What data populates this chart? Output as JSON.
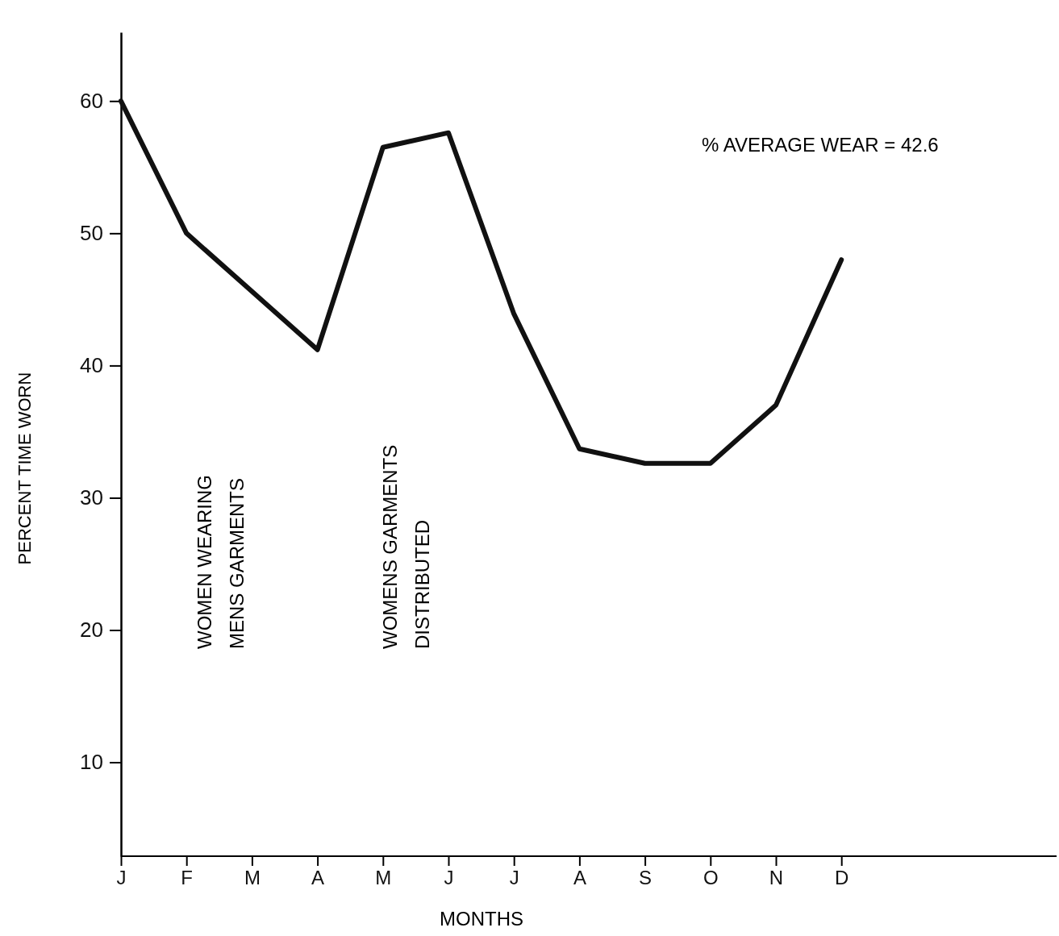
{
  "chart_data": {
    "type": "line",
    "xlabel": "MONTHS",
    "ylabel": "PERCENT TIME WORN",
    "categories": [
      "J",
      "F",
      "M",
      "A",
      "M",
      "J",
      "J",
      "A",
      "S",
      "O",
      "N",
      "D"
    ],
    "series": [
      {
        "color": "#111111",
        "values": [
          60,
          50,
          45.6,
          41.2,
          56.5,
          57.6,
          43.9,
          33.7,
          32.6,
          32.6,
          37,
          48
        ]
      }
    ],
    "ylim": [
      2.9,
      65.2
    ],
    "yticks": [
      10,
      20,
      30,
      40,
      50,
      60
    ],
    "grid": false,
    "marker": "none",
    "line_style": "solid",
    "annotations": [
      "% AVERAGE WEAR = 42.6",
      "WOMEN WEARING\nMENS GARMENTS",
      "WOMENS GARMENTS\nDISTRIBUTED"
    ]
  }
}
